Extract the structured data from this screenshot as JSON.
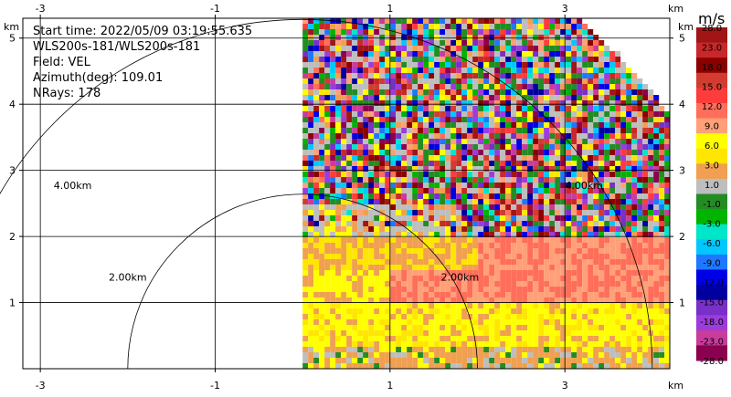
{
  "chart_data": {
    "type": "heatmap",
    "info": {
      "start_time": "Start time: 2022/05/09 03:19:55.635",
      "instrument": "WLS200s-181/WLS200s-181",
      "field": "Field: VEL",
      "azimuth": "Azimuth(deg): 109.01",
      "nrays": "NRays: 178"
    },
    "axis_unit": "km",
    "x_ticks": [
      -3,
      -1,
      1,
      3
    ],
    "y_ticks": [
      1,
      2,
      3,
      4,
      5
    ],
    "xlim": [
      -3.2,
      4.2
    ],
    "ylim": [
      0,
      5.3
    ],
    "range_rings": [
      {
        "radius": 2.0,
        "label": "2.00km",
        "label_x": -2.0,
        "label_y": 1.33
      },
      {
        "radius": 2.0,
        "label": "2.00km",
        "label_x": 1.8,
        "label_y": 1.33
      },
      {
        "radius": 4.0,
        "label": "4.00km",
        "label_x": -2.63,
        "label_y": 2.72
      },
      {
        "radius": 4.0,
        "label": "4.00km",
        "label_x": 3.22,
        "label_y": 2.72
      }
    ],
    "sector": {
      "radius_km": 5.1,
      "angle_start_deg": 0,
      "angle_end_deg": 90
    },
    "colorbar": {
      "unit": "m/s",
      "ticks": [
        "28.0",
        "23.0",
        "18.0",
        "15.0",
        "12.0",
        "9.0",
        "6.0",
        "3.0",
        "1.0",
        "-1.0",
        "-3.0",
        "-6.0",
        "-9.0",
        "-12.0",
        "-15.0",
        "-18.0",
        "-23.0",
        "-28.0"
      ],
      "colors": [
        "#a01515",
        "#c8282a",
        "#8c0000",
        "#d23c30",
        "#ff3c3c",
        "#ff6e5a",
        "#ffa078",
        "#ffff00",
        "#ffe600",
        "#f0a050",
        "#bebebe",
        "#238c23",
        "#00b400",
        "#00e6c8",
        "#00c8ff",
        "#1e78ff",
        "#0000e6",
        "#0000a0",
        "#7830c8",
        "#9c3cdc",
        "#c83c9c",
        "#8c0050"
      ]
    }
  }
}
